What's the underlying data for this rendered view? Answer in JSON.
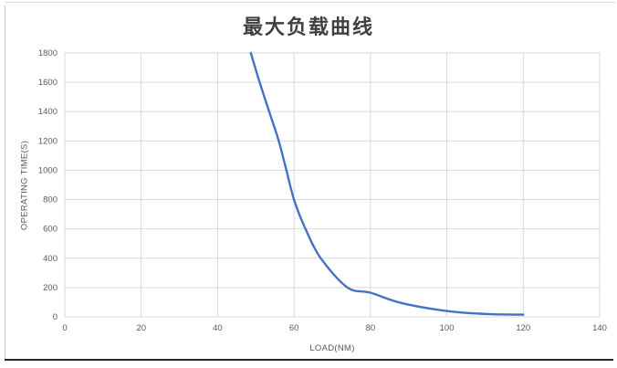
{
  "chart_data": {
    "type": "line",
    "title": "最大负载曲线",
    "xlabel": "LOAD(NM)",
    "ylabel": "OPERATING TIME(S)",
    "xlim": [
      0,
      140
    ],
    "ylim": [
      0,
      1800
    ],
    "x_ticks": [
      0,
      20,
      40,
      60,
      80,
      100,
      120,
      140
    ],
    "y_ticks": [
      0,
      200,
      400,
      600,
      800,
      1000,
      1200,
      1400,
      1600,
      1800
    ],
    "grid": true,
    "legend_position": "none",
    "series": [
      {
        "name": "最大负载曲线",
        "color": "#4472c4",
        "points": [
          [
            48.7,
            1800
          ],
          [
            51,
            1600
          ],
          [
            53.5,
            1400
          ],
          [
            56,
            1200
          ],
          [
            58,
            1000
          ],
          [
            60,
            800
          ],
          [
            63,
            600
          ],
          [
            67,
            400
          ],
          [
            74,
            200
          ],
          [
            80,
            165
          ],
          [
            88,
            95
          ],
          [
            100,
            40
          ],
          [
            110,
            20
          ],
          [
            120,
            15
          ]
        ]
      }
    ],
    "colors": {
      "line": "#4472c4",
      "grid": "#d9d9d9",
      "axis_text": "#595959",
      "title_text": "#404040"
    }
  }
}
